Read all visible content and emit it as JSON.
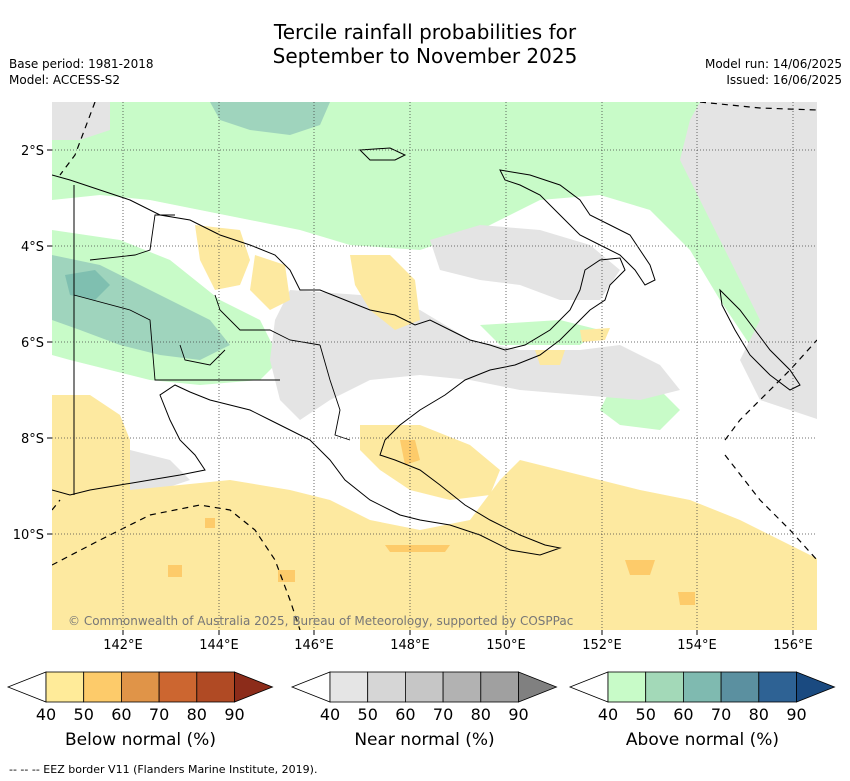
{
  "title_line1": "Tercile rainfall probabilities for",
  "title_line2": "September to November 2025",
  "base_period": "Base period: 1981-2018",
  "model": "Model: ACCESS-S2",
  "model_run": "Model run: 14/06/2025",
  "issued": "Issued: 16/06/2025",
  "map": {
    "lat_labels": [
      "2°S",
      "4°S",
      "6°S",
      "8°S",
      "10°S"
    ],
    "lon_labels": [
      "142°E",
      "144°E",
      "146°E",
      "148°E",
      "150°E",
      "152°E",
      "154°E",
      "156°E"
    ],
    "colors": {
      "below_40": "#fde9a0",
      "near_40": "#e4e4e4",
      "above_40": "#c8fbc8",
      "above_50": "#9fd4bd",
      "above_60": "#7fbfb0"
    },
    "copyright": "© Commonwealth of Australia 2025, Bureau of Meteorology, supported by COSPPac"
  },
  "colorbars": [
    {
      "title": "Below normal (%)",
      "ticks": [
        "40",
        "50",
        "60",
        "70",
        "80",
        "90"
      ],
      "colors": [
        "#ffeb99",
        "#fdcb6a",
        "#e09448",
        "#cc6630",
        "#b04a24",
        "#8c2c1a"
      ]
    },
    {
      "title": "Near normal (%)",
      "ticks": [
        "40",
        "50",
        "60",
        "70",
        "80",
        "90"
      ],
      "colors": [
        "#e5e5e5",
        "#d6d6d6",
        "#c6c6c6",
        "#b2b2b2",
        "#a0a0a0",
        "#808080"
      ]
    },
    {
      "title": "Above normal (%)",
      "ticks": [
        "40",
        "50",
        "60",
        "70",
        "80",
        "90"
      ],
      "colors": [
        "#c8fbc8",
        "#a3d9b8",
        "#7fbab0",
        "#5b90a0",
        "#2e6294",
        "#1a4a80"
      ]
    }
  ],
  "footer": "-- -- -- EEZ border V11 (Flanders Marine Institute, 2019)."
}
